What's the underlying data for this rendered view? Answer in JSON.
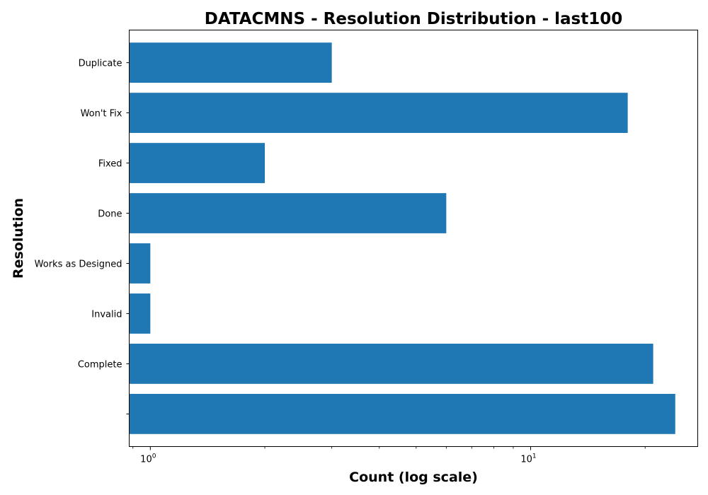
{
  "chart_data": {
    "type": "bar",
    "orientation": "horizontal",
    "title": "DATACMNS - Resolution Distribution - last100",
    "xlabel": "Count (log scale)",
    "ylabel": "Resolution",
    "x_scale": "log",
    "xlim": [
      0.88,
      27.5
    ],
    "categories": [
      "",
      "Complete",
      "Invalid",
      "Works as Designed",
      "Done",
      "Fixed",
      "Won't Fix",
      "Duplicate"
    ],
    "values": [
      24,
      21,
      1,
      1,
      6,
      2,
      18,
      3
    ],
    "bar_color": "#1f77b4",
    "x_ticks": [
      {
        "value": 1,
        "base": "10",
        "exp": "0"
      },
      {
        "value": 10,
        "base": "10",
        "exp": "1"
      }
    ],
    "grid": false,
    "legend": "none"
  }
}
